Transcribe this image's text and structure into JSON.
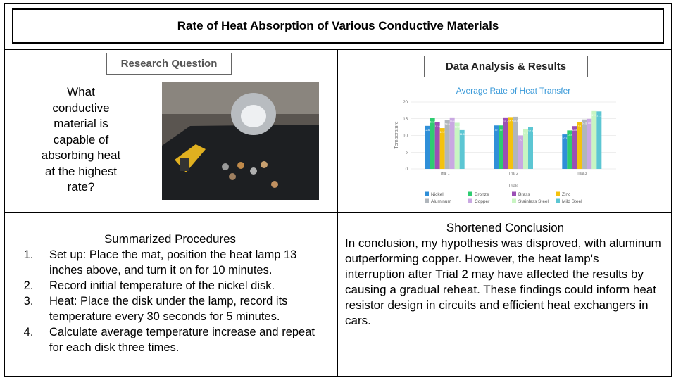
{
  "title": "Rate of Heat Absorption of Various Conductive Materials",
  "research": {
    "heading": "Research Question",
    "question": "What conductive material is capable of absorbing heat at the highest rate?"
  },
  "results": {
    "heading": "Data Analysis & Results"
  },
  "chart_data": {
    "type": "bar",
    "title": "Average Rate of Heat Transfer",
    "x_label": "Trials",
    "y_label": "Temperature",
    "categories": [
      "Trial 1",
      "Trial 2",
      "Trial 3"
    ],
    "ylim": [
      0,
      20
    ],
    "yticks": [
      0,
      5,
      10,
      15,
      20
    ],
    "grid": true,
    "series": [
      {
        "name": "Nickel",
        "color": "#2f8fd8",
        "values": [
          12.88,
          13.0,
          10.3
        ]
      },
      {
        "name": "Bronze",
        "color": "#2ecc71",
        "values": [
          15.3,
          13.0,
          11.5
        ]
      },
      {
        "name": "Brass",
        "color": "#9b4fb5",
        "values": [
          13.9,
          15.4,
          12.8
        ]
      },
      {
        "name": "Zinc",
        "color": "#f4c20d",
        "values": [
          12.2,
          15.5,
          14.0
        ]
      },
      {
        "name": "Aluminum",
        "color": "#b0b6bc",
        "values": [
          14.6,
          15.6,
          14.8
        ]
      },
      {
        "name": "Copper",
        "color": "#c9a8e2",
        "values": [
          15.4,
          10.0,
          15.0
        ]
      },
      {
        "name": "Stainless Steel",
        "color": "#c8f5c2",
        "values": [
          13.8,
          11.8,
          17.3
        ]
      },
      {
        "name": "Mild Steel",
        "color": "#5cc6d3",
        "values": [
          11.6,
          12.5,
          17.2
        ]
      }
    ]
  },
  "procedures": {
    "heading": "Summarized Procedures",
    "steps": [
      "Set up: Place the mat, position the heat lamp 13 inches above, and turn it on for 10 minutes.",
      "Record initial temperature of the nickel disk.",
      "Heat: Place the disk under the lamp, record its temperature every 30 seconds for 5 minutes.",
      "Calculate average temperature increase and repeat for each disk three times."
    ]
  },
  "conclusion": {
    "heading": "Shortened Conclusion",
    "text": "In conclusion, my hypothesis was disproved, with aluminum outperforming copper. However, the heat lamp's interruption after Trial 2 may have affected the results by causing a gradual reheat. These findings could inform heat resistor design in circuits and efficient heat exchangers in cars."
  }
}
